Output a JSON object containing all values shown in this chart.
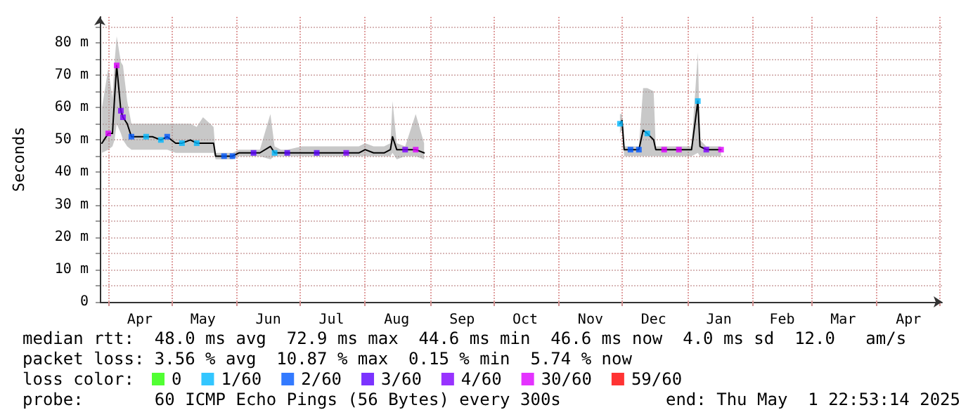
{
  "chart_data": {
    "type": "line",
    "ylabel": "Seconds",
    "legend_title": "loss color:",
    "legend": "bottom",
    "grid": true,
    "marker": "square",
    "line_style": "solid",
    "xlim": [
      "2024-03-28",
      "2025-05-01T22:53"
    ],
    "xticks": [
      {
        "value": "2024-04-01",
        "label": null
      },
      {
        "value": "2024-04-16",
        "label": "Apr"
      },
      {
        "value": "2024-05-01",
        "label": null
      },
      {
        "value": "2024-05-16",
        "label": "May"
      },
      {
        "value": "2024-06-01",
        "label": null
      },
      {
        "value": "2024-06-16",
        "label": "Jun"
      },
      {
        "value": "2024-07-01",
        "label": null
      },
      {
        "value": "2024-07-16",
        "label": "Jul"
      },
      {
        "value": "2024-08-01",
        "label": null
      },
      {
        "value": "2024-08-16",
        "label": "Aug"
      },
      {
        "value": "2024-09-01",
        "label": null
      },
      {
        "value": "2024-09-16",
        "label": "Sep"
      },
      {
        "value": "2024-10-01",
        "label": null
      },
      {
        "value": "2024-10-16",
        "label": "Oct"
      },
      {
        "value": "2024-11-01",
        "label": null
      },
      {
        "value": "2024-11-16",
        "label": "Nov"
      },
      {
        "value": "2024-12-01",
        "label": null
      },
      {
        "value": "2024-12-16",
        "label": "Dec"
      },
      {
        "value": "2025-01-01",
        "label": null
      },
      {
        "value": "2025-01-16",
        "label": "Jan"
      },
      {
        "value": "2025-02-01",
        "label": null
      },
      {
        "value": "2025-02-15",
        "label": "Feb"
      },
      {
        "value": "2025-03-01",
        "label": null
      },
      {
        "value": "2025-03-16",
        "label": "Mar"
      },
      {
        "value": "2025-04-01",
        "label": null
      },
      {
        "value": "2025-04-16",
        "label": "Apr"
      },
      {
        "value": "2025-05-01",
        "label": null
      }
    ],
    "ylim": [
      0,
      88
    ],
    "yticks": [
      0,
      {
        "value": 5,
        "label": null
      },
      {
        "value": 10,
        "label": "10 m"
      },
      {
        "value": 15,
        "label": null
      },
      {
        "value": 20,
        "label": "20 m"
      },
      {
        "value": 25,
        "label": null
      },
      {
        "value": 30,
        "label": "30 m"
      },
      {
        "value": 35,
        "label": null
      },
      {
        "value": 40,
        "label": "40 m"
      },
      {
        "value": 45,
        "label": null
      },
      {
        "value": 50,
        "label": "50 m"
      },
      {
        "value": 55,
        "label": null
      },
      {
        "value": 60,
        "label": "60 m"
      },
      {
        "value": 65,
        "label": null
      },
      {
        "value": 70,
        "label": "70 m"
      },
      {
        "value": 75,
        "label": null
      },
      {
        "value": 80,
        "label": "80 m"
      },
      {
        "value": 85,
        "label": null
      }
    ],
    "series": [
      {
        "color": "#000000",
        "marker": "none",
        "x": [
          "2024-03-29",
          "2024-04-01",
          "2024-04-03",
          "2024-04-04",
          "2024-04-05",
          "2024-04-07",
          "2024-04-08",
          "2024-04-10",
          "2024-04-12",
          "2024-04-16",
          "2024-04-19",
          "2024-04-22",
          "2024-04-26",
          "2024-04-29",
          "2024-05-03",
          "2024-05-06",
          "2024-05-10",
          "2024-05-13",
          "2024-05-16",
          "2024-05-21",
          "2024-05-22",
          "2024-05-26",
          "2024-05-30",
          "2024-06-02",
          "2024-06-05",
          "2024-06-09",
          "2024-06-12",
          "2024-06-17",
          "2024-06-19",
          "2024-06-22",
          "2024-06-25",
          "2024-07-02",
          "2024-07-09",
          "2024-07-16",
          "2024-07-23",
          "2024-07-29",
          "2024-08-01",
          "2024-08-05",
          "2024-08-10",
          "2024-08-13",
          "2024-08-14",
          "2024-08-16",
          "2024-08-20",
          "2024-08-25",
          "2024-08-29",
          "2024-10-15",
          "2024-11-30",
          "2024-12-01",
          "2024-12-02",
          "2024-12-05",
          "2024-12-09",
          "2024-12-11",
          "2024-12-13",
          "2024-12-16",
          "2024-12-17",
          "2024-12-21",
          "2024-12-28",
          "2025-01-03",
          "2025-01-06",
          "2025-01-07",
          "2025-01-10",
          "2025-01-17"
        ],
        "values": [
          49,
          52,
          52,
          63,
          73,
          59,
          57,
          55,
          51,
          51,
          51,
          51,
          50,
          51,
          49,
          49,
          50,
          49,
          49,
          49,
          45,
          45,
          45,
          46,
          46,
          46,
          46,
          48,
          46,
          46,
          46,
          46,
          46,
          46,
          46,
          46,
          47,
          46,
          46,
          47,
          51,
          47,
          47,
          47,
          46,
          null,
          55,
          56,
          47,
          47,
          47,
          53,
          52,
          50,
          47,
          47,
          47,
          47,
          62,
          48,
          47,
          47
        ],
        "lower": [
          46,
          47,
          48,
          50,
          55,
          52,
          50,
          48,
          47,
          47,
          47,
          47,
          47,
          47,
          46,
          46,
          46,
          46,
          46,
          46,
          44,
          44,
          44,
          45,
          45,
          45,
          45,
          44,
          45,
          45,
          45,
          45,
          45,
          45,
          45,
          45,
          45,
          45,
          45,
          45,
          46,
          44,
          45,
          45,
          44,
          null,
          52,
          53,
          45,
          45,
          45,
          45,
          45,
          45,
          45,
          45,
          45,
          45,
          46,
          45,
          45,
          45
        ],
        "upper": [
          60,
          72,
          63,
          74,
          82,
          74,
          73,
          62,
          55,
          55,
          55,
          55,
          55,
          55,
          55,
          55,
          55,
          54,
          57,
          54,
          46,
          46,
          46,
          47,
          47,
          47,
          47,
          58,
          48,
          47,
          47,
          48,
          48,
          48,
          48,
          48,
          49,
          48,
          48,
          49,
          62,
          49,
          48,
          58,
          49,
          null,
          58,
          58,
          48,
          48,
          48,
          66,
          66,
          65,
          48,
          48,
          48,
          48,
          77,
          50,
          48,
          48
        ]
      },
      {
        "type": "scatter",
        "name": "0",
        "color": "#26ff00"
      },
      {
        "type": "scatter",
        "name": "1/60",
        "color": "#00b8ff",
        "x": [
          "2024-04-19",
          "2024-04-26",
          "2024-05-06",
          "2024-05-13",
          "2024-06-19",
          "2024-11-30",
          "2024-12-13",
          "2025-01-06"
        ],
        "values": [
          51,
          50,
          49,
          49,
          46,
          55,
          52,
          62
        ]
      },
      {
        "type": "scatter",
        "name": "2/60",
        "color": "#0059ff",
        "x": [
          "2024-04-12",
          "2024-04-29",
          "2024-05-26",
          "2024-05-30",
          "2024-12-05",
          "2024-12-09"
        ],
        "values": [
          51,
          51,
          45,
          45,
          47,
          47
        ]
      },
      {
        "type": "scatter",
        "name": "3/60",
        "color": "#5a00ff",
        "x": [
          "2024-06-09",
          "2024-06-25",
          "2024-07-09"
        ],
        "values": [
          46,
          46,
          46
        ]
      },
      {
        "type": "scatter",
        "name": "4/60",
        "color": "#7e00ff",
        "x": [
          "2024-04-07",
          "2024-04-08",
          "2024-07-23",
          "2024-08-20",
          "2025-01-10"
        ],
        "values": [
          59,
          57,
          46,
          47,
          47
        ]
      },
      {
        "type": "scatter",
        "name": "30/60",
        "color": "#dd00ff",
        "x": [
          "2024-04-01",
          "2024-04-05",
          "2024-08-25",
          "2024-12-21",
          "2024-12-28",
          "2025-01-17"
        ],
        "values": [
          52,
          73,
          47,
          47,
          47,
          47
        ]
      },
      {
        "type": "scatter",
        "name": "59/60",
        "color": "#ff0000"
      }
    ],
    "annotations": [
      "median rtt:  48.0 ms avg  72.9 ms max  44.6 ms min  46.6 ms now  4.0 ms sd  12.0   am/s",
      "packet loss: 3.56 % avg  10.87 % max  0.15 % min  5.74 % now",
      "probe:       60 ICMP Echo Pings (56 Bytes) every 300s",
      "end: Thu May  1 22:53:14 2025"
    ]
  }
}
